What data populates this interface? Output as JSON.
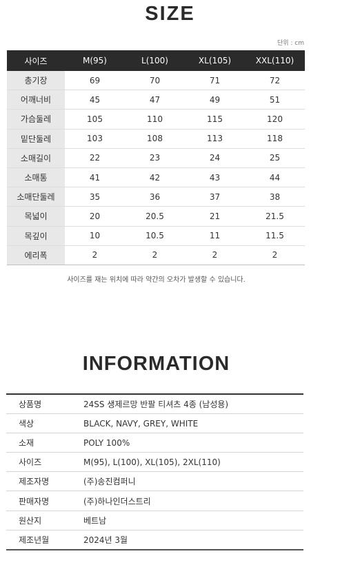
{
  "size_section": {
    "title": "SIZE",
    "unit": "단위 : cm",
    "headers": [
      "사이즈",
      "M(95)",
      "L(100)",
      "XL(105)",
      "XXL(110)"
    ],
    "rows": [
      {
        "label": "총기장",
        "values": [
          "69",
          "70",
          "71",
          "72"
        ]
      },
      {
        "label": "어깨너비",
        "values": [
          "45",
          "47",
          "49",
          "51"
        ]
      },
      {
        "label": "가슴둘레",
        "values": [
          "105",
          "110",
          "115",
          "120"
        ]
      },
      {
        "label": "밑단둘레",
        "values": [
          "103",
          "108",
          "113",
          "118"
        ]
      },
      {
        "label": "소매길이",
        "values": [
          "22",
          "23",
          "24",
          "25"
        ]
      },
      {
        "label": "소매통",
        "values": [
          "41",
          "42",
          "43",
          "44"
        ]
      },
      {
        "label": "소매단둘레",
        "values": [
          "35",
          "36",
          "37",
          "38"
        ]
      },
      {
        "label": "목넓이",
        "values": [
          "20",
          "20.5",
          "21",
          "21.5"
        ]
      },
      {
        "label": "목깊이",
        "values": [
          "10",
          "10.5",
          "11",
          "11.5"
        ]
      },
      {
        "label": "에리폭",
        "values": [
          "2",
          "2",
          "2",
          "2"
        ]
      }
    ],
    "note": "사이즈를 재는 위치에 따라 약간의 오차가 발생할 수 있습니다."
  },
  "info_section": {
    "title": "INFORMATION",
    "rows": [
      {
        "key": "상품명",
        "value": "24SS 생제르망 반팔 티셔츠 4종 (남성용)"
      },
      {
        "key": "색상",
        "value": "BLACK, NAVY, GREY, WHITE"
      },
      {
        "key": "소재",
        "value": "POLY 100%"
      },
      {
        "key": "사이즈",
        "value": "M(95), L(100), XL(105), 2XL(110)"
      },
      {
        "key": "제조자명",
        "value": "(주)송진컴퍼니"
      },
      {
        "key": "판매자명",
        "value": "(주)하나인더스트리"
      },
      {
        "key": "원산지",
        "value": "베트남"
      },
      {
        "key": "제조년월",
        "value": "2024년 3월"
      }
    ]
  }
}
